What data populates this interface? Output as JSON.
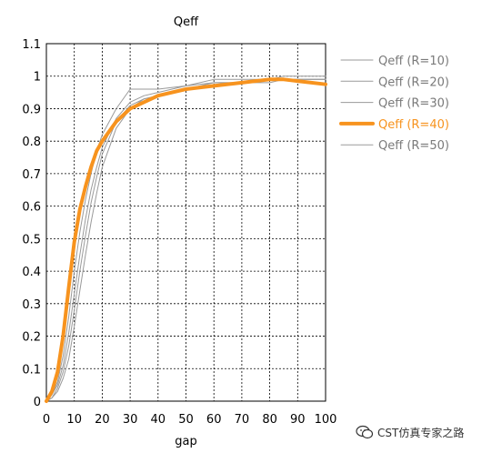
{
  "chart_data": {
    "type": "line",
    "title": "Qeff",
    "xlabel": "gap",
    "ylabel": "",
    "xlim": [
      0,
      100
    ],
    "ylim": [
      0,
      1.1
    ],
    "xticks": [
      "0",
      "10",
      "20",
      "30",
      "40",
      "50",
      "60",
      "70",
      "80",
      "90",
      "100"
    ],
    "yticks": [
      "0",
      "0.1",
      "0.2",
      "0.3",
      "0.4",
      "0.5",
      "0.6",
      "0.7",
      "0.8",
      "0.9",
      "1",
      "1.1"
    ],
    "grid": true,
    "legend_position": "right",
    "x": [
      0,
      2,
      4,
      6,
      8,
      10,
      12,
      14,
      16,
      18,
      20,
      25,
      30,
      35,
      40,
      50,
      60,
      70,
      80,
      85,
      90,
      100
    ],
    "series": [
      {
        "name": "Qeff (R=10)",
        "color": "#9a9a9a",
        "highlight": false,
        "values": [
          0,
          0.02,
          0.06,
          0.14,
          0.26,
          0.4,
          0.52,
          0.62,
          0.7,
          0.77,
          0.82,
          0.9,
          0.96,
          0.96,
          0.96,
          0.97,
          0.98,
          0.98,
          0.99,
          1.0,
          1.0,
          1.0
        ]
      },
      {
        "name": "Qeff (R=20)",
        "color": "#9a9a9a",
        "highlight": false,
        "values": [
          0,
          0.02,
          0.05,
          0.11,
          0.21,
          0.33,
          0.45,
          0.56,
          0.65,
          0.72,
          0.78,
          0.87,
          0.92,
          0.94,
          0.95,
          0.97,
          0.99,
          0.99,
          0.99,
          0.99,
          0.99,
          0.99
        ]
      },
      {
        "name": "Qeff (R=30)",
        "color": "#9a9a9a",
        "highlight": false,
        "values": [
          0,
          0.01,
          0.04,
          0.09,
          0.17,
          0.28,
          0.4,
          0.51,
          0.61,
          0.69,
          0.76,
          0.86,
          0.91,
          0.93,
          0.94,
          0.96,
          0.98,
          0.98,
          0.99,
          0.99,
          0.99,
          0.99
        ]
      },
      {
        "name": "Qeff (R=40)",
        "color": "#f7931e",
        "highlight": true,
        "values": [
          0,
          0.03,
          0.09,
          0.2,
          0.35,
          0.49,
          0.59,
          0.66,
          0.72,
          0.77,
          0.8,
          0.86,
          0.9,
          0.92,
          0.94,
          0.96,
          0.97,
          0.98,
          0.99,
          0.99,
          0.985,
          0.975
        ]
      },
      {
        "name": "Qeff (R=50)",
        "color": "#9a9a9a",
        "highlight": false,
        "values": [
          0,
          0.01,
          0.03,
          0.07,
          0.13,
          0.23,
          0.34,
          0.45,
          0.55,
          0.64,
          0.72,
          0.84,
          0.9,
          0.93,
          0.94,
          0.96,
          0.97,
          0.98,
          0.98,
          0.99,
          0.99,
          0.99
        ]
      }
    ]
  },
  "watermark": {
    "text": "CST仿真专家之路",
    "icon": "wechat-icon"
  }
}
